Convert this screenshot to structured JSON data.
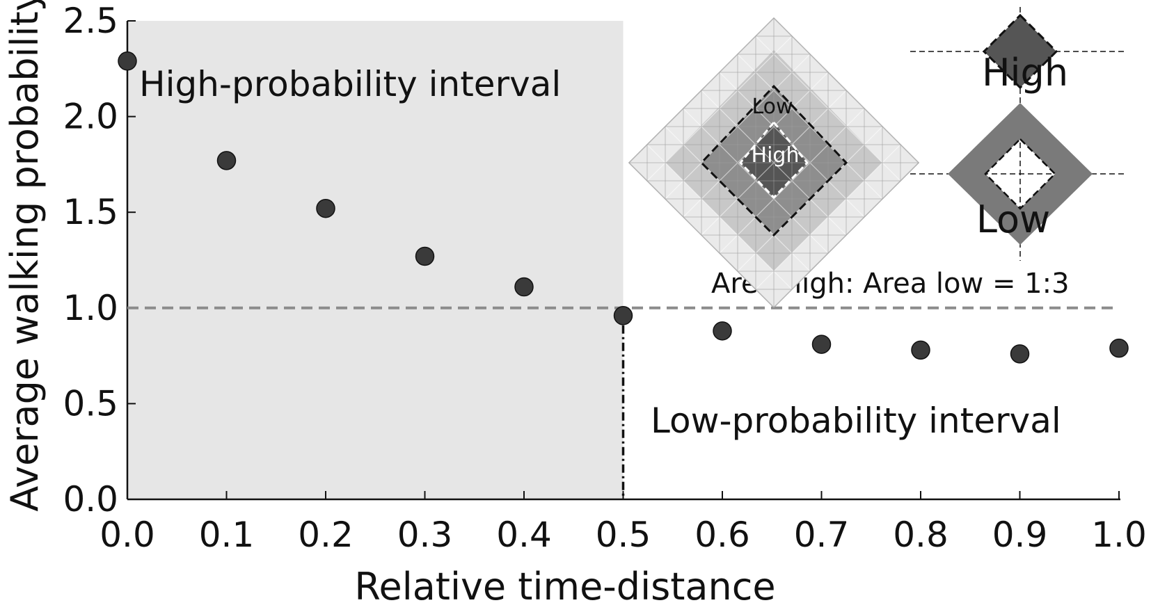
{
  "chart_data": {
    "type": "scatter",
    "title": "",
    "xlabel": "Relative time-distance",
    "ylabel": "Average walking probability",
    "xlim": [
      0,
      1.0
    ],
    "ylim": [
      0,
      2.5
    ],
    "x_ticks": [
      "0.0",
      "0.1",
      "0.2",
      "0.3",
      "0.4",
      "0.5",
      "0.6",
      "0.7",
      "0.8",
      "0.9",
      "1.0"
    ],
    "y_ticks": [
      "0.0",
      "0.5",
      "1.0",
      "1.5",
      "2.0",
      "2.5"
    ],
    "series": [
      {
        "name": "Average walking probability",
        "x": [
          0.0,
          0.1,
          0.2,
          0.3,
          0.4,
          0.5,
          0.6,
          0.7,
          0.8,
          0.9,
          1.0
        ],
        "y": [
          2.29,
          1.77,
          1.52,
          1.27,
          1.11,
          0.96,
          0.88,
          0.81,
          0.78,
          0.76,
          0.79
        ]
      }
    ],
    "reference_line_y": 1.0,
    "threshold_x": 0.5,
    "shaded_region": {
      "x": [
        0,
        0.5
      ],
      "y": [
        0,
        2.5
      ]
    },
    "annotations": {
      "high_interval": "High-probability interval",
      "low_interval": "Low-probability interval",
      "area_ratio": "Area high: Area low = 1:3",
      "inset_grid_low": "Low",
      "inset_grid_high": "High",
      "inset_right_high": "High",
      "inset_right_low": "Low"
    }
  },
  "colors": {
    "marker": "#3a3a3a",
    "shade": "#e6e6e6",
    "reference_line": "#8c8c8c",
    "axis": "#111111"
  }
}
